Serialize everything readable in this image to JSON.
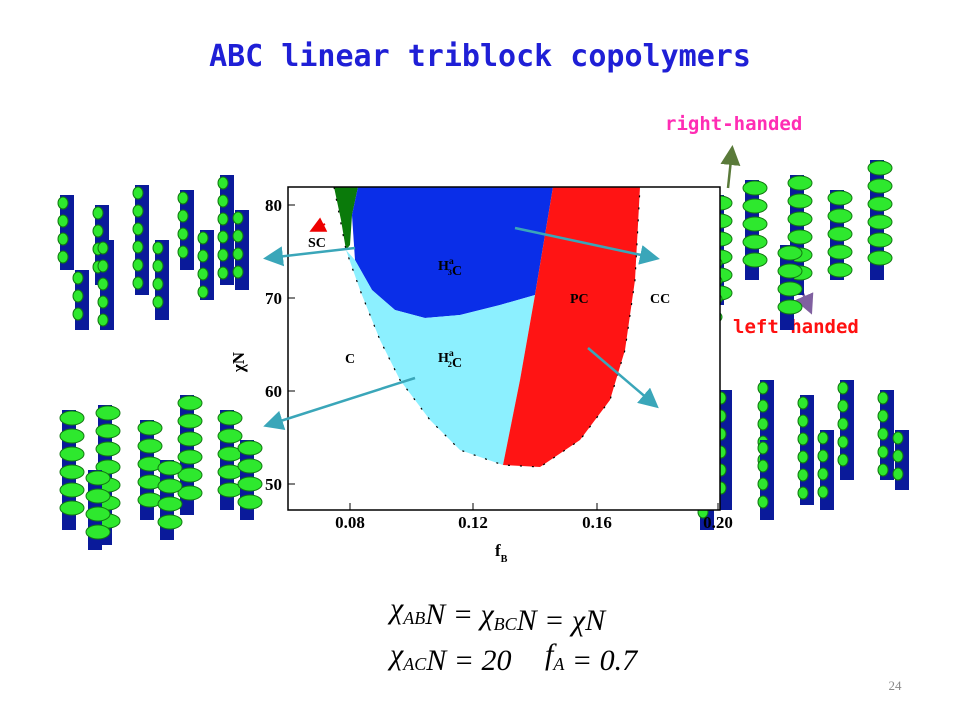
{
  "title": "ABC linear triblock copolymers",
  "annotations": {
    "upper": "right-handed",
    "lower": "left-handed"
  },
  "plot": {
    "xlabel": {
      "text": "f",
      "sub": "B"
    },
    "ylabel": "χN",
    "xticks": [
      "0.08",
      "0.12",
      "0.16",
      "0.20"
    ],
    "yticks": [
      "80",
      "70",
      "60",
      "50"
    ],
    "regions": [
      [
        {
          "text": "SC"
        }
      ],
      [
        {
          "text": "H",
          "sub": "3",
          "sup": "a"
        },
        {
          "text": "C"
        }
      ],
      [
        {
          "text": "H",
          "sub": "2",
          "sup": "a"
        },
        {
          "text": "C"
        }
      ],
      [
        {
          "text": "PC"
        }
      ],
      [
        {
          "text": "CC"
        }
      ],
      [
        {
          "text": "C"
        }
      ]
    ]
  },
  "equations": [
    [
      {
        "text": "χ",
        "sub": "AB"
      },
      {
        "text": "N = χ",
        "sub": "BC"
      },
      {
        "text": "N = χN"
      }
    ],
    [
      {
        "text": "χ",
        "sub": "AC"
      },
      {
        "text": "N = 20"
      }
    ],
    [
      {
        "text": "f",
        "sub": "A"
      },
      {
        "text": " = 0.7"
      }
    ]
  ],
  "page_number": "24"
}
